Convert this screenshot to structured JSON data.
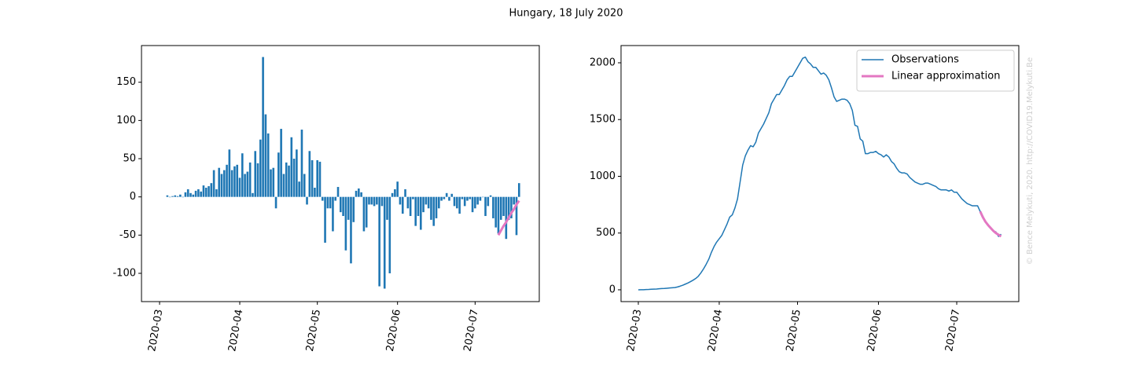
{
  "title": "Hungary, 18 July 2020",
  "watermark": "© Bence Melykuti, 2020. http://COVID19.Melykuti.Be",
  "chart_data": [
    {
      "type": "bar",
      "categories": [
        "2020-03",
        null,
        null,
        null,
        null,
        null,
        null,
        null,
        null,
        null,
        null,
        null,
        null,
        null,
        null,
        null,
        null,
        null,
        null,
        null,
        null,
        null,
        null,
        null,
        null,
        null,
        null,
        null,
        null,
        null,
        null,
        "2020-04",
        null,
        null,
        null,
        null,
        null,
        null,
        null,
        null,
        null,
        null,
        null,
        null,
        null,
        null,
        null,
        null,
        null,
        null,
        null,
        null,
        null,
        null,
        null,
        null,
        null,
        null,
        null,
        null,
        null,
        "2020-05",
        null,
        null,
        null,
        null,
        null,
        null,
        null,
        null,
        null,
        null,
        null,
        null,
        null,
        null,
        null,
        null,
        null,
        null,
        null,
        null,
        null,
        null,
        null,
        null,
        null,
        null,
        null,
        null,
        null,
        null,
        "2020-06",
        null,
        null,
        null,
        null,
        null,
        null,
        null,
        null,
        null,
        null,
        null,
        null,
        null,
        null,
        null,
        null,
        null,
        null,
        null,
        null,
        null,
        null,
        null,
        null,
        null,
        null,
        null,
        null,
        null,
        "2020-07",
        null,
        null,
        null,
        null,
        null,
        null,
        null,
        null,
        null,
        null,
        null,
        null,
        null,
        null,
        null,
        null,
        null
      ],
      "series": [
        {
          "kind": "bar",
          "color": "#1f77b4",
          "values": [
            null,
            null,
            null,
            2,
            0,
            1,
            2,
            1,
            3,
            0,
            6,
            10,
            5,
            3,
            8,
            10,
            7,
            15,
            12,
            14,
            18,
            35,
            10,
            38,
            30,
            35,
            42,
            62,
            35,
            40,
            42,
            25,
            57,
            30,
            33,
            45,
            5,
            60,
            44,
            75,
            183,
            108,
            83,
            36,
            38,
            -15,
            58,
            89,
            30,
            45,
            41,
            78,
            50,
            62,
            20,
            88,
            30,
            -10,
            60,
            48,
            12,
            48,
            46,
            -5,
            -60,
            -15,
            -15,
            -45,
            -5,
            13,
            -20,
            -25,
            -70,
            -30,
            -87,
            -33,
            8,
            11,
            6,
            -45,
            -40,
            -10,
            -10,
            -12,
            -10,
            -117,
            -12,
            -120,
            -30,
            -100,
            5,
            10,
            20,
            -10,
            -22,
            10,
            -15,
            -25,
            -3,
            -38,
            -25,
            -43,
            -20,
            -10,
            -15,
            -30,
            -38,
            -28,
            -15,
            -5,
            -3,
            5,
            -5,
            4,
            -12,
            -15,
            -22,
            -3,
            -12,
            -5,
            -3,
            -20,
            -15,
            -10,
            -5,
            0,
            -25,
            -12,
            2,
            -28,
            -40,
            -48,
            -30,
            -25,
            -55,
            -30,
            -28,
            -10,
            -50,
            18
          ]
        },
        {
          "kind": "line",
          "color": "#e377c2",
          "width": 3,
          "values": [
            null,
            null,
            null,
            null,
            null,
            null,
            null,
            null,
            null,
            null,
            null,
            null,
            null,
            null,
            null,
            null,
            null,
            null,
            null,
            null,
            null,
            null,
            null,
            null,
            null,
            null,
            null,
            null,
            null,
            null,
            null,
            null,
            null,
            null,
            null,
            null,
            null,
            null,
            null,
            null,
            null,
            null,
            null,
            null,
            null,
            null,
            null,
            null,
            null,
            null,
            null,
            null,
            null,
            null,
            null,
            null,
            null,
            null,
            null,
            null,
            null,
            null,
            null,
            null,
            null,
            null,
            null,
            null,
            null,
            null,
            null,
            null,
            null,
            null,
            null,
            null,
            null,
            null,
            null,
            null,
            null,
            null,
            null,
            null,
            null,
            null,
            null,
            null,
            null,
            null,
            null,
            null,
            null,
            null,
            null,
            null,
            null,
            null,
            null,
            null,
            null,
            null,
            null,
            null,
            null,
            null,
            null,
            null,
            null,
            null,
            null,
            null,
            null,
            null,
            null,
            null,
            null,
            null,
            null,
            null,
            null,
            null,
            null,
            null,
            null,
            null,
            null,
            null,
            null,
            null,
            null,
            -50,
            -44,
            -38,
            -33,
            -27,
            -21,
            -16,
            -10,
            -5
          ]
        }
      ],
      "ylim": [
        -137,
        198
      ],
      "yticks": [
        -100,
        -50,
        0,
        50,
        100,
        150
      ]
    },
    {
      "type": "line",
      "categories": [
        "2020-03",
        null,
        null,
        null,
        null,
        null,
        null,
        null,
        null,
        null,
        null,
        null,
        null,
        null,
        null,
        null,
        null,
        null,
        null,
        null,
        null,
        null,
        null,
        null,
        null,
        null,
        null,
        null,
        null,
        null,
        null,
        "2020-04",
        null,
        null,
        null,
        null,
        null,
        null,
        null,
        null,
        null,
        null,
        null,
        null,
        null,
        null,
        null,
        null,
        null,
        null,
        null,
        null,
        null,
        null,
        null,
        null,
        null,
        null,
        null,
        null,
        null,
        "2020-05",
        null,
        null,
        null,
        null,
        null,
        null,
        null,
        null,
        null,
        null,
        null,
        null,
        null,
        null,
        null,
        null,
        null,
        null,
        null,
        null,
        null,
        null,
        null,
        null,
        null,
        null,
        null,
        null,
        null,
        null,
        "2020-06",
        null,
        null,
        null,
        null,
        null,
        null,
        null,
        null,
        null,
        null,
        null,
        null,
        null,
        null,
        null,
        null,
        null,
        null,
        null,
        null,
        null,
        null,
        null,
        null,
        null,
        null,
        null,
        null,
        null,
        "2020-07",
        null,
        null,
        null,
        null,
        null,
        null,
        null,
        null,
        null,
        null,
        null,
        null,
        null,
        null,
        null,
        null,
        null
      ],
      "series": [
        {
          "name": "Observations",
          "kind": "line",
          "color": "#1f77b4",
          "width": 1.5,
          "values": [
            0,
            1,
            1,
            2,
            3,
            5,
            6,
            7,
            9,
            11,
            12,
            14,
            16,
            18,
            20,
            25,
            32,
            40,
            50,
            60,
            72,
            85,
            100,
            120,
            150,
            185,
            225,
            270,
            330,
            380,
            420,
            450,
            480,
            530,
            580,
            640,
            660,
            720,
            800,
            950,
            1100,
            1180,
            1230,
            1270,
            1260,
            1300,
            1380,
            1420,
            1460,
            1510,
            1560,
            1640,
            1680,
            1720,
            1720,
            1760,
            1800,
            1850,
            1880,
            1880,
            1920,
            1960,
            2000,
            2040,
            2050,
            2010,
            1990,
            1960,
            1960,
            1930,
            1900,
            1910,
            1890,
            1850,
            1780,
            1700,
            1660,
            1670,
            1680,
            1680,
            1670,
            1640,
            1580,
            1450,
            1440,
            1330,
            1310,
            1200,
            1200,
            1210,
            1210,
            1220,
            1200,
            1190,
            1170,
            1190,
            1170,
            1130,
            1110,
            1070,
            1040,
            1030,
            1030,
            1020,
            990,
            970,
            950,
            940,
            930,
            930,
            940,
            940,
            930,
            920,
            910,
            890,
            880,
            880,
            880,
            870,
            880,
            860,
            860,
            830,
            800,
            780,
            760,
            750,
            740,
            740,
            740,
            690,
            650,
            600,
            570,
            540,
            520,
            510,
            470,
            490
          ]
        },
        {
          "name": "Linear approximation",
          "kind": "line",
          "color": "#e377c2",
          "width": 3,
          "values": [
            null,
            null,
            null,
            null,
            null,
            null,
            null,
            null,
            null,
            null,
            null,
            null,
            null,
            null,
            null,
            null,
            null,
            null,
            null,
            null,
            null,
            null,
            null,
            null,
            null,
            null,
            null,
            null,
            null,
            null,
            null,
            null,
            null,
            null,
            null,
            null,
            null,
            null,
            null,
            null,
            null,
            null,
            null,
            null,
            null,
            null,
            null,
            null,
            null,
            null,
            null,
            null,
            null,
            null,
            null,
            null,
            null,
            null,
            null,
            null,
            null,
            null,
            null,
            null,
            null,
            null,
            null,
            null,
            null,
            null,
            null,
            null,
            null,
            null,
            null,
            null,
            null,
            null,
            null,
            null,
            null,
            null,
            null,
            null,
            null,
            null,
            null,
            null,
            null,
            null,
            null,
            null,
            null,
            null,
            null,
            null,
            null,
            null,
            null,
            null,
            null,
            null,
            null,
            null,
            null,
            null,
            null,
            null,
            null,
            null,
            null,
            null,
            null,
            null,
            null,
            null,
            null,
            null,
            null,
            null,
            null,
            null,
            null,
            null,
            null,
            null,
            null,
            null,
            null,
            null,
            null,
            690,
            640,
            600,
            570,
            545,
            520,
            500,
            485,
            470
          ]
        }
      ],
      "ylim": [
        -104,
        2152
      ],
      "yticks": [
        0,
        500,
        1000,
        1500,
        2000
      ],
      "legend": "upper right"
    }
  ]
}
